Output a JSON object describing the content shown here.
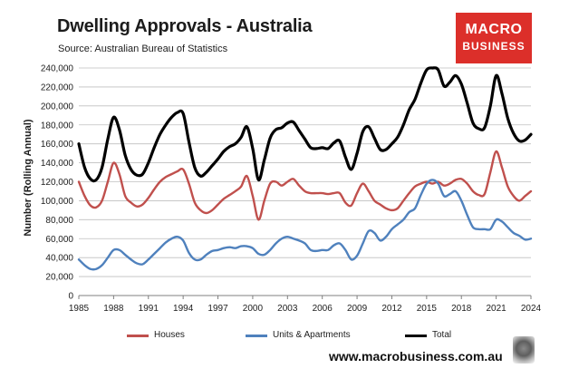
{
  "header": {
    "title": "Dwelling Approvals - Australia",
    "source": "Source: Australian Bureau of Statistics"
  },
  "logo": {
    "line1": "MACRO",
    "line2": "BUSINESS"
  },
  "footer": {
    "url": "www.macrobusiness.com.au"
  },
  "colors": {
    "houses": "#c0504d",
    "units": "#4f81bd",
    "total": "#000000",
    "logo_bg": "#dc2f2a"
  },
  "chart_data": {
    "type": "line",
    "title": "Dwelling Approvals - Australia",
    "xlabel": "",
    "ylabel": "Number (Rolling Annual)",
    "xlim": [
      1985,
      2024
    ],
    "ylim": [
      0,
      240000
    ],
    "x_ticks": [
      "1985",
      "1988",
      "1991",
      "1994",
      "1997",
      "2000",
      "2003",
      "2006",
      "2009",
      "2012",
      "2015",
      "2018",
      "2021",
      "2024"
    ],
    "y_ticks": [
      "0",
      "20,000",
      "40,000",
      "60,000",
      "80,000",
      "100,000",
      "120,000",
      "140,000",
      "160,000",
      "180,000",
      "200,000",
      "220,000",
      "240,000"
    ],
    "grid": true,
    "legend": "bottom",
    "series": [
      {
        "name": "Houses",
        "color": "#c0504d",
        "x": [
          1985,
          1985.5,
          1986,
          1986.5,
          1987,
          1987.5,
          1988,
          1988.5,
          1989,
          1989.5,
          1990,
          1990.5,
          1991,
          1991.5,
          1992,
          1992.5,
          1993,
          1993.5,
          1994,
          1994.5,
          1995,
          1995.5,
          1996,
          1996.5,
          1997,
          1997.5,
          1998,
          1998.5,
          1999,
          1999.5,
          2000,
          2000.5,
          2001,
          2001.5,
          2002,
          2002.5,
          2003,
          2003.5,
          2004,
          2004.5,
          2005,
          2005.5,
          2006,
          2006.5,
          2007,
          2007.5,
          2008,
          2008.5,
          2009,
          2009.5,
          2010,
          2010.5,
          2011,
          2011.5,
          2012,
          2012.5,
          2013,
          2013.5,
          2014,
          2014.5,
          2015,
          2015.5,
          2016,
          2016.5,
          2017,
          2017.5,
          2018,
          2018.5,
          2019,
          2019.5,
          2020,
          2020.5,
          2021,
          2021.5,
          2022,
          2022.5,
          2023,
          2023.5,
          2024
        ],
        "y": [
          120000,
          105000,
          95000,
          93000,
          100000,
          120000,
          140000,
          128000,
          105000,
          98000,
          94000,
          96000,
          103000,
          112000,
          120000,
          125000,
          128000,
          131000,
          133000,
          118000,
          98000,
          90000,
          87000,
          90000,
          96000,
          102000,
          106000,
          110000,
          115000,
          126000,
          105000,
          80000,
          100000,
          118000,
          120000,
          116000,
          120000,
          123000,
          116000,
          110000,
          108000,
          108000,
          108000,
          107000,
          108000,
          108000,
          98000,
          95000,
          108000,
          118000,
          110000,
          100000,
          96000,
          92000,
          90000,
          92000,
          100000,
          108000,
          115000,
          118000,
          120000,
          118000,
          120000,
          116000,
          118000,
          122000,
          123000,
          118000,
          110000,
          106000,
          107000,
          130000,
          152000,
          135000,
          115000,
          105000,
          100000,
          105000,
          110000
        ]
      },
      {
        "name": "Units & Apartments",
        "color": "#4f81bd",
        "x": [
          1985,
          1985.5,
          1986,
          1986.5,
          1987,
          1987.5,
          1988,
          1988.5,
          1989,
          1989.5,
          1990,
          1990.5,
          1991,
          1991.5,
          1992,
          1992.5,
          1993,
          1993.5,
          1994,
          1994.5,
          1995,
          1995.5,
          1996,
          1996.5,
          1997,
          1997.5,
          1998,
          1998.5,
          1999,
          1999.5,
          2000,
          2000.5,
          2001,
          2001.5,
          2002,
          2002.5,
          2003,
          2003.5,
          2004,
          2004.5,
          2005,
          2005.5,
          2006,
          2006.5,
          2007,
          2007.5,
          2008,
          2008.5,
          2009,
          2009.5,
          2010,
          2010.5,
          2011,
          2011.5,
          2012,
          2012.5,
          2013,
          2013.5,
          2014,
          2014.5,
          2015,
          2015.5,
          2016,
          2016.5,
          2017,
          2017.5,
          2018,
          2018.5,
          2019,
          2019.5,
          2020,
          2020.5,
          2021,
          2021.5,
          2022,
          2022.5,
          2023,
          2023.5,
          2024
        ],
        "y": [
          38000,
          32000,
          28000,
          28000,
          32000,
          40000,
          48000,
          48000,
          43000,
          38000,
          34000,
          33000,
          38000,
          44000,
          50000,
          56000,
          60000,
          62000,
          58000,
          45000,
          38000,
          38000,
          43000,
          47000,
          48000,
          50000,
          51000,
          50000,
          52000,
          52000,
          50000,
          44000,
          43000,
          48000,
          55000,
          60000,
          62000,
          60000,
          58000,
          55000,
          48000,
          47000,
          48000,
          48000,
          53000,
          55000,
          48000,
          38000,
          42000,
          55000,
          68000,
          66000,
          58000,
          62000,
          70000,
          75000,
          80000,
          88000,
          92000,
          106000,
          118000,
          122000,
          118000,
          105000,
          107000,
          110000,
          100000,
          85000,
          72000,
          70000,
          70000,
          70000,
          80000,
          78000,
          72000,
          66000,
          63000,
          59000,
          60000
        ]
      },
      {
        "name": "Total",
        "color": "#000000",
        "x": [
          1985,
          1985.5,
          1986,
          1986.5,
          1987,
          1987.5,
          1988,
          1988.5,
          1989,
          1989.5,
          1990,
          1990.5,
          1991,
          1991.5,
          1992,
          1992.5,
          1993,
          1993.5,
          1994,
          1994.5,
          1995,
          1995.5,
          1996,
          1996.5,
          1997,
          1997.5,
          1998,
          1998.5,
          1999,
          1999.5,
          2000,
          2000.5,
          2001,
          2001.5,
          2002,
          2002.5,
          2003,
          2003.5,
          2004,
          2004.5,
          2005,
          2005.5,
          2006,
          2006.5,
          2007,
          2007.5,
          2008,
          2008.5,
          2009,
          2009.5,
          2010,
          2010.5,
          2011,
          2011.5,
          2012,
          2012.5,
          2013,
          2013.5,
          2014,
          2014.5,
          2015,
          2015.5,
          2016,
          2016.5,
          2017,
          2017.5,
          2018,
          2018.5,
          2019,
          2019.5,
          2020,
          2020.5,
          2021,
          2021.5,
          2022,
          2022.5,
          2023,
          2023.5,
          2024
        ],
        "y": [
          160000,
          135000,
          123000,
          122000,
          135000,
          165000,
          188000,
          175000,
          148000,
          133000,
          127000,
          128000,
          140000,
          156000,
          170000,
          180000,
          188000,
          193000,
          192000,
          162000,
          135000,
          126000,
          130000,
          137000,
          144000,
          152000,
          157000,
          160000,
          167000,
          178000,
          155000,
          122000,
          143000,
          166000,
          175000,
          177000,
          182000,
          183000,
          174000,
          165000,
          156000,
          155000,
          156000,
          155000,
          161000,
          163000,
          146000,
          133000,
          150000,
          173000,
          178000,
          166000,
          154000,
          154000,
          160000,
          167000,
          180000,
          196000,
          207000,
          224000,
          238000,
          240000,
          238000,
          221000,
          225000,
          232000,
          223000,
          203000,
          182000,
          176000,
          177000,
          200000,
          232000,
          213000,
          187000,
          171000,
          163000,
          164000,
          170000
        ]
      }
    ]
  }
}
